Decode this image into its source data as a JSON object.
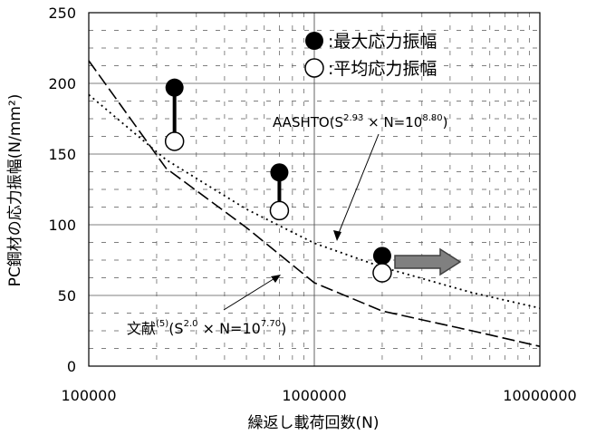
{
  "chart_data": {
    "type": "scatter",
    "xlabel": "繰返し載荷回数(N)",
    "ylabel": "PC鋼材の応力振幅(N/mm²)",
    "xscale": "log",
    "xlim": [
      100000,
      10000000
    ],
    "ylim": [
      0,
      250
    ],
    "x_ticks": [
      "100000",
      "1000000",
      "10000000"
    ],
    "y_ticks": [
      "0",
      "50",
      "100",
      "150",
      "200",
      "250"
    ],
    "grid": true,
    "legend_position": "top-right",
    "series": [
      {
        "name": "最大応力振幅",
        "marker": "filled-circle",
        "points": [
          [
            240000,
            197
          ],
          [
            700000,
            137
          ],
          [
            2000000,
            78
          ]
        ]
      },
      {
        "name": "平均応力振幅",
        "marker": "open-circle",
        "points": [
          [
            240000,
            159
          ],
          [
            700000,
            110
          ],
          [
            2000000,
            66
          ]
        ]
      }
    ],
    "curves": [
      {
        "style": "dotted",
        "points": [
          [
            100000,
            192
          ],
          [
            220000,
            146
          ],
          [
            500000,
            111
          ],
          [
            1000000,
            87
          ],
          [
            2000000,
            70
          ],
          [
            5000000,
            52
          ],
          [
            10000000,
            41
          ]
        ]
      },
      {
        "style": "dashed",
        "points": [
          [
            100000,
            216
          ],
          [
            220000,
            140
          ],
          [
            500000,
            98
          ],
          [
            1000000,
            59
          ],
          [
            2000000,
            39
          ],
          [
            5000000,
            25
          ],
          [
            10000000,
            14
          ]
        ]
      }
    ],
    "annotations": {
      "aashto": {
        "prefix": "AASHTO(S",
        "sup1": "2.93",
        "middle": " × N=10",
        "sup2": "8.80",
        "suffix": ")"
      },
      "ref": {
        "prefix": "文献",
        "sup0": "(5)",
        "middle1": "(S",
        "sup1": "2.0",
        "middle": " × N=10",
        "sup2": "7.70",
        "suffix": ")"
      }
    },
    "arrow_note": "→",
    "colors": {
      "marker": "#000000",
      "arrow_fill": "#808080",
      "arrow_stroke": "#404040",
      "grid": "#555555"
    }
  }
}
